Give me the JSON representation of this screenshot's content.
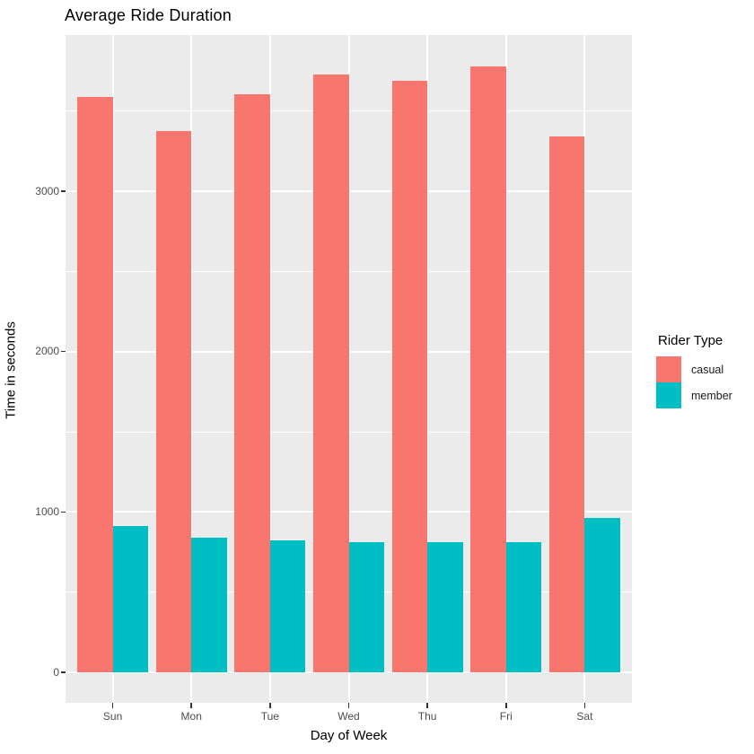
{
  "title": "Average Ride Duration",
  "chart_data": {
    "type": "bar",
    "title": "Average Ride Duration",
    "xlabel": "Day of Week",
    "ylabel": "Time in seconds",
    "categories": [
      "Sun",
      "Mon",
      "Tue",
      "Wed",
      "Thu",
      "Fri",
      "Sat"
    ],
    "series": [
      {
        "name": "casual",
        "color": "#F8766D",
        "values": [
          3590,
          3375,
          3605,
          3730,
          3690,
          3780,
          3340
        ]
      },
      {
        "name": "member",
        "color": "#00BFC4",
        "values": [
          915,
          840,
          820,
          812,
          810,
          810,
          960
        ]
      }
    ],
    "y_major_ticks": [
      0,
      1000,
      2000,
      3000
    ],
    "y_minor_ticks": [
      500,
      1500,
      2500,
      3500
    ],
    "ylim": [
      -190,
      3970
    ],
    "grid": true,
    "bar_layout": "dodged",
    "legend_title": "Rider Type",
    "legend_position": "right"
  },
  "legend": {
    "title": "Rider Type",
    "items": [
      {
        "label": "casual",
        "color": "#F8766D"
      },
      {
        "label": "member",
        "color": "#00BFC4"
      }
    ]
  },
  "colors": {
    "panel_background": "#EBEBEB",
    "gridline": "#FFFFFF",
    "tick_mark": "#333333",
    "tick_label": "#4D4D4D",
    "text": "#000000",
    "casual": "#F8766D",
    "member": "#00BFC4"
  }
}
